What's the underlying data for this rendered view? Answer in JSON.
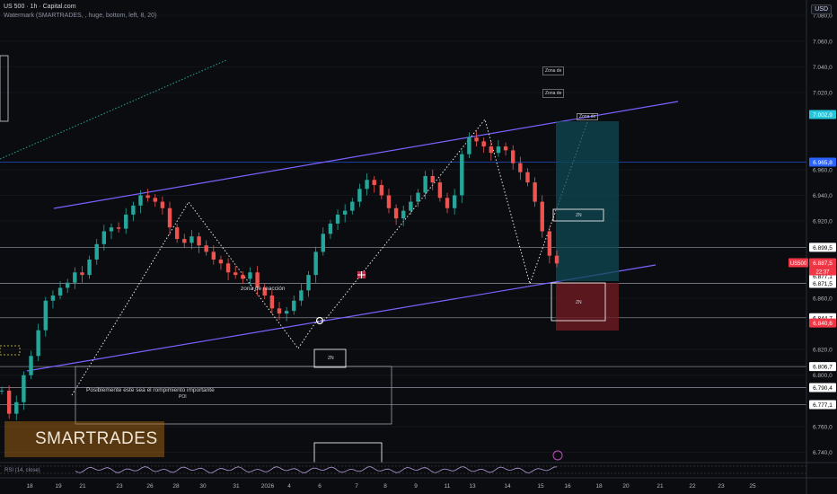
{
  "header": {
    "symbol_line": "US 500 · 1h · Capital.com",
    "indicator_line": "Watermark (SMARTRADES, , huge, bottom, left, 8, 20)"
  },
  "currency": "USD",
  "watermark": "SMARTRADES",
  "rsi_label": "RSI (14, close)",
  "annotations": {
    "zona_reaccion": "zona de reacción",
    "posible_rompimiento": "Posiblemente este sea el rompimiento importante",
    "poi": "POI",
    "zona_de_1": "Zona de",
    "zona_de_2": "Zona de",
    "zona_de_3": "Zona de",
    "zn_1": "ZN",
    "zn_2": "ZN",
    "zn_3": "ZN"
  },
  "chart_data": {
    "type": "candlestick",
    "symbol": "US500",
    "interval": "1h",
    "ylim": [
      6732,
      7092
    ],
    "y_ticks": [
      7080.0,
      7060.0,
      7040.0,
      7020.0,
      6960.0,
      6940.0,
      6920.0,
      6860.0,
      6820.0,
      6800.0,
      6760.0,
      6740.0
    ],
    "y_tick_labels": [
      "7.080,0",
      "7.060,0",
      "7.040,0",
      "7.020,0",
      "6.960,0",
      "6.940,0",
      "6.920,0",
      "6.860,0",
      "6.820,0",
      "6.800,0",
      "6.760,0",
      "6.740,0"
    ],
    "x_ticks": [
      "18",
      "19",
      "21",
      "23",
      "26",
      "28",
      "30",
      "31",
      "2026",
      "4",
      "6",
      "7",
      "8",
      "9",
      "11",
      "13",
      "14",
      "15",
      "16",
      "18",
      "20",
      "21",
      "22",
      "23",
      "25"
    ],
    "price_labels": [
      {
        "value": 7002.9,
        "text": "7.002,9",
        "color": "#26c6da"
      },
      {
        "value": 6965.8,
        "text": "6.965,8",
        "color": "#2962ff"
      },
      {
        "value": 6899.5,
        "text": "6.899,5",
        "color": "#ffffff"
      },
      {
        "value": 6887.5,
        "text": "6.887,5",
        "color": "#f23645"
      },
      {
        "value": 6877.1,
        "text": "6.877,1",
        "color": "#ffffff"
      },
      {
        "value": 6871.5,
        "text": "6.871,5",
        "color": "#ffffff"
      },
      {
        "value": 6844.7,
        "text": "6.844,7",
        "color": "#ffffff"
      },
      {
        "value": 6840.6,
        "text": "6.840,6",
        "color": "#f23645"
      },
      {
        "value": 6806.7,
        "text": "6.806,7",
        "color": "#ffffff"
      },
      {
        "value": 6790.4,
        "text": "6.790,4",
        "color": "#ffffff"
      },
      {
        "value": 6777.1,
        "text": "6.777,1",
        "color": "#ffffff"
      }
    ],
    "last_price": {
      "symbol": "US500",
      "value": 6887.5,
      "countdown": "22:37"
    },
    "horizontal_levels": [
      6965.8,
      6899.5,
      6871.5,
      6844.7,
      6806.7,
      6790.4,
      6777.1
    ],
    "series_close": [
      6788,
      6770,
      6779,
      6800,
      6815,
      6835,
      6858,
      6862,
      6868,
      6872,
      6880,
      6878,
      6890,
      6902,
      6912,
      6915,
      6914,
      6925,
      6932,
      6940,
      6938,
      6935,
      6930,
      6915,
      6906,
      6903,
      6908,
      6901,
      6896,
      6890,
      6887,
      6880,
      6878,
      6875,
      6880,
      6868,
      6862,
      6852,
      6848,
      6850,
      6858,
      6866,
      6878,
      6896,
      6910,
      6918,
      6925,
      6928,
      6935,
      6945,
      6952,
      6948,
      6940,
      6930,
      6922,
      6928,
      6935,
      6942,
      6955,
      6950,
      6938,
      6930,
      6940,
      6972,
      6985,
      6982,
      6978,
      6973,
      6978,
      6975,
      6965,
      6958,
      6950,
      6935,
      6912,
      6893,
      6887
    ],
    "colors": {
      "up": "#26a69a",
      "down": "#ef5350",
      "channel": "#7b61ff"
    }
  }
}
